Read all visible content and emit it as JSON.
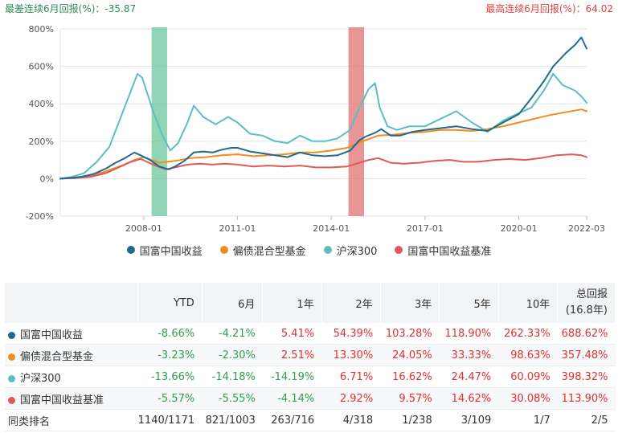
{
  "notes": {
    "worst": "最差连续6月回报(%)：-35.87",
    "best": "最高连续6月回报(%)：64.02"
  },
  "chart_data": {
    "type": "line",
    "yticks": [
      "800%",
      "600%",
      "400%",
      "200%",
      "0%",
      "-200%"
    ],
    "ytick_values": [
      800,
      600,
      400,
      200,
      0,
      -200
    ],
    "ylim": [
      -200,
      800
    ],
    "xticks": [
      "2008-01",
      "2011-01",
      "2014-01",
      "2017-01",
      "2020-01",
      "2022-03"
    ],
    "xtick_values": [
      2008.0,
      2011.0,
      2014.0,
      2017.0,
      2020.0,
      2022.17
    ],
    "xlim": [
      2005.33,
      2022.17
    ],
    "highlights": [
      {
        "label": "最差连续6月回报",
        "from": 2008.25,
        "to": 2008.75,
        "color": "#6cc79e"
      },
      {
        "label": "最高连续6月回报",
        "from": 2014.55,
        "to": 2015.05,
        "color": "#e07272"
      }
    ],
    "series": [
      {
        "name": "国富中国收益",
        "color": "#1f6a8f",
        "x": [
          2005.33,
          2005.7,
          2006.0,
          2006.4,
          2006.8,
          2007.1,
          2007.4,
          2007.7,
          2007.9,
          2008.2,
          2008.5,
          2008.8,
          2009.0,
          2009.3,
          2009.6,
          2009.9,
          2010.2,
          2010.5,
          2010.8,
          2011.0,
          2011.4,
          2011.8,
          2012.2,
          2012.6,
          2013.0,
          2013.4,
          2013.8,
          2014.2,
          2014.6,
          2014.9,
          2015.1,
          2015.4,
          2015.6,
          2015.9,
          2016.2,
          2016.6,
          2017.0,
          2017.5,
          2018.0,
          2018.5,
          2019.0,
          2019.5,
          2020.0,
          2020.4,
          2020.8,
          2021.1,
          2021.5,
          2021.8,
          2022.0,
          2022.17
        ],
        "values": [
          0,
          5,
          10,
          25,
          55,
          85,
          110,
          140,
          125,
          100,
          65,
          50,
          65,
          95,
          140,
          145,
          140,
          155,
          165,
          165,
          145,
          135,
          125,
          115,
          140,
          125,
          120,
          125,
          150,
          205,
          225,
          245,
          265,
          230,
          230,
          250,
          260,
          270,
          280,
          265,
          255,
          300,
          345,
          430,
          520,
          600,
          670,
          715,
          755,
          695
        ]
      },
      {
        "name": "偏债混合型基金",
        "color": "#f28c1e",
        "x": [
          2005.33,
          2005.8,
          2006.3,
          2006.8,
          2007.3,
          2007.7,
          2008.0,
          2008.5,
          2009.0,
          2009.5,
          2010.0,
          2010.5,
          2011.0,
          2011.5,
          2012.0,
          2012.5,
          2013.0,
          2013.5,
          2014.0,
          2014.5,
          2015.0,
          2015.5,
          2016.0,
          2016.5,
          2017.0,
          2017.5,
          2018.0,
          2018.5,
          2019.0,
          2019.5,
          2020.0,
          2020.5,
          2021.0,
          2021.5,
          2022.0,
          2022.17
        ],
        "values": [
          0,
          5,
          15,
          40,
          70,
          100,
          115,
          85,
          95,
          110,
          115,
          125,
          130,
          120,
          125,
          130,
          140,
          140,
          150,
          165,
          200,
          230,
          235,
          245,
          250,
          260,
          260,
          255,
          265,
          280,
          300,
          320,
          340,
          355,
          370,
          360
        ]
      },
      {
        "name": "沪深300",
        "color": "#5bbfbf",
        "x": [
          2005.33,
          2005.7,
          2006.1,
          2006.5,
          2006.9,
          2007.2,
          2007.5,
          2007.8,
          2007.95,
          2008.3,
          2008.6,
          2008.85,
          2009.1,
          2009.4,
          2009.6,
          2009.9,
          2010.3,
          2010.7,
          2011.0,
          2011.4,
          2011.8,
          2012.2,
          2012.6,
          2013.0,
          2013.4,
          2013.8,
          2014.2,
          2014.6,
          2014.9,
          2015.2,
          2015.4,
          2015.55,
          2015.8,
          2016.1,
          2016.5,
          2017.0,
          2017.5,
          2018.0,
          2018.5,
          2019.0,
          2019.5,
          2020.0,
          2020.4,
          2020.8,
          2021.1,
          2021.4,
          2021.8,
          2022.0,
          2022.17
        ],
        "values": [
          0,
          10,
          30,
          90,
          170,
          300,
          430,
          560,
          540,
          360,
          230,
          150,
          190,
          300,
          390,
          330,
          290,
          330,
          300,
          240,
          230,
          200,
          190,
          230,
          200,
          200,
          215,
          260,
          380,
          480,
          510,
          380,
          280,
          260,
          280,
          280,
          320,
          360,
          300,
          250,
          310,
          350,
          380,
          470,
          560,
          500,
          470,
          440,
          405
        ]
      },
      {
        "name": "国富中国收益基准",
        "color": "#e05a5a",
        "x": [
          2005.33,
          2005.8,
          2006.3,
          2006.8,
          2007.2,
          2007.6,
          2007.9,
          2008.3,
          2008.7,
          2009.0,
          2009.4,
          2009.8,
          2010.2,
          2010.6,
          2011.0,
          2011.5,
          2012.0,
          2012.5,
          2013.0,
          2013.5,
          2014.0,
          2014.5,
          2014.9,
          2015.2,
          2015.5,
          2015.9,
          2016.3,
          2016.8,
          2017.3,
          2017.8,
          2018.2,
          2018.7,
          2019.2,
          2019.7,
          2020.2,
          2020.7,
          2021.2,
          2021.7,
          2022.0,
          2022.17
        ],
        "values": [
          0,
          3,
          10,
          30,
          60,
          90,
          105,
          75,
          50,
          60,
          75,
          80,
          75,
          80,
          75,
          65,
          70,
          65,
          70,
          60,
          60,
          65,
          85,
          100,
          110,
          85,
          80,
          85,
          95,
          100,
          90,
          90,
          100,
          105,
          100,
          110,
          125,
          130,
          125,
          115
        ]
      }
    ]
  },
  "legend": [
    "国富中国收益",
    "偏债混合型基金",
    "沪深300",
    "国富中国收益基准"
  ],
  "legend_colors": [
    "#1f6a8f",
    "#f28c1e",
    "#5bbfbf",
    "#e05a5a"
  ],
  "table": {
    "headers": [
      "",
      "YTD",
      "6月",
      "1年",
      "2年",
      "3年",
      "5年",
      "10年"
    ],
    "total_header": [
      "总回报",
      "(16.8年)"
    ],
    "rows": [
      {
        "name": "国富中国收益",
        "color": "#1f6a8f",
        "values": [
          "-8.66%",
          "-4.21%",
          "5.41%",
          "54.39%",
          "103.28%",
          "118.90%",
          "262.33%",
          "688.62%"
        ]
      },
      {
        "name": "偏债混合型基金",
        "color": "#f28c1e",
        "values": [
          "-3.23%",
          "-2.30%",
          "2.51%",
          "13.30%",
          "24.05%",
          "33.33%",
          "98.63%",
          "357.48%"
        ]
      },
      {
        "name": "沪深300",
        "color": "#5bbfbf",
        "values": [
          "-13.66%",
          "-14.18%",
          "-14.19%",
          "6.71%",
          "16.62%",
          "24.47%",
          "60.09%",
          "398.32%"
        ]
      },
      {
        "name": "国富中国收益基准",
        "color": "#e05a5a",
        "values": [
          "-5.57%",
          "-5.55%",
          "-4.14%",
          "2.92%",
          "9.57%",
          "14.62%",
          "30.08%",
          "113.90%"
        ]
      }
    ],
    "rank_row": {
      "name": "同类排名",
      "values": [
        "1140/1171",
        "821/1003",
        "263/716",
        "4/318",
        "1/238",
        "3/109",
        "1/7",
        "2/5"
      ]
    }
  }
}
